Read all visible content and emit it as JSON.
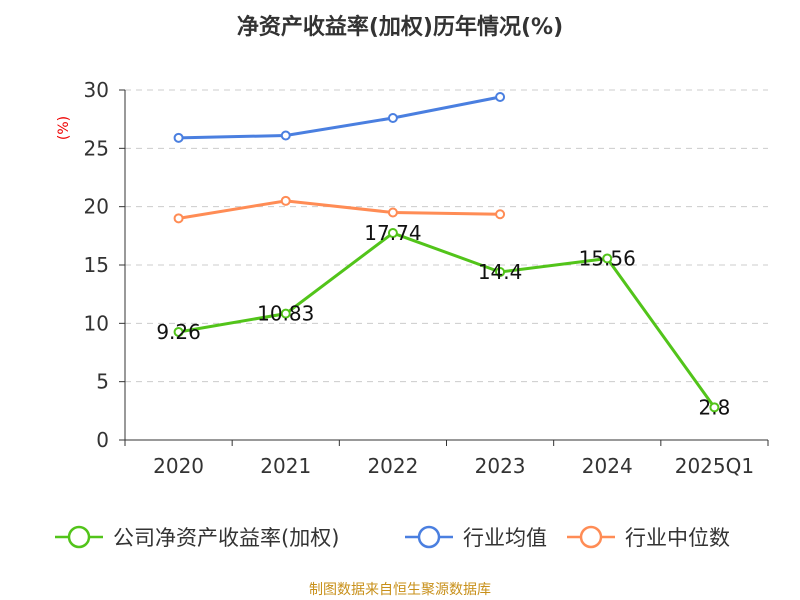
{
  "chart_data": {
    "type": "line",
    "title": "净资产收益率(加权)历年情况(%)",
    "ylabel": "(%)",
    "xlabel": "",
    "ylim": [
      0,
      30
    ],
    "yticks": [
      0,
      5,
      10,
      15,
      20,
      25,
      30
    ],
    "grid": true,
    "legend_position": "bottom",
    "categories": [
      "2020",
      "2021",
      "2022",
      "2023",
      "2024",
      "2025Q1"
    ],
    "series": [
      {
        "name": "公司净资产收益率(加权)",
        "color": "#52c41a",
        "values": [
          9.26,
          10.83,
          17.74,
          14.4,
          15.56,
          2.8
        ],
        "labels": [
          "9.26",
          "10.83",
          "17.74",
          "14.4",
          "15.56",
          "2.8"
        ]
      },
      {
        "name": "行业均值",
        "color": "#4a7fe0",
        "values": [
          25.9,
          26.1,
          27.6,
          29.4,
          null,
          null
        ]
      },
      {
        "name": "行业中位数",
        "color": "#ff8c55",
        "values": [
          19.0,
          20.5,
          19.5,
          19.35,
          null,
          null
        ]
      }
    ]
  },
  "footer": "制图数据来自恒生聚源数据库"
}
